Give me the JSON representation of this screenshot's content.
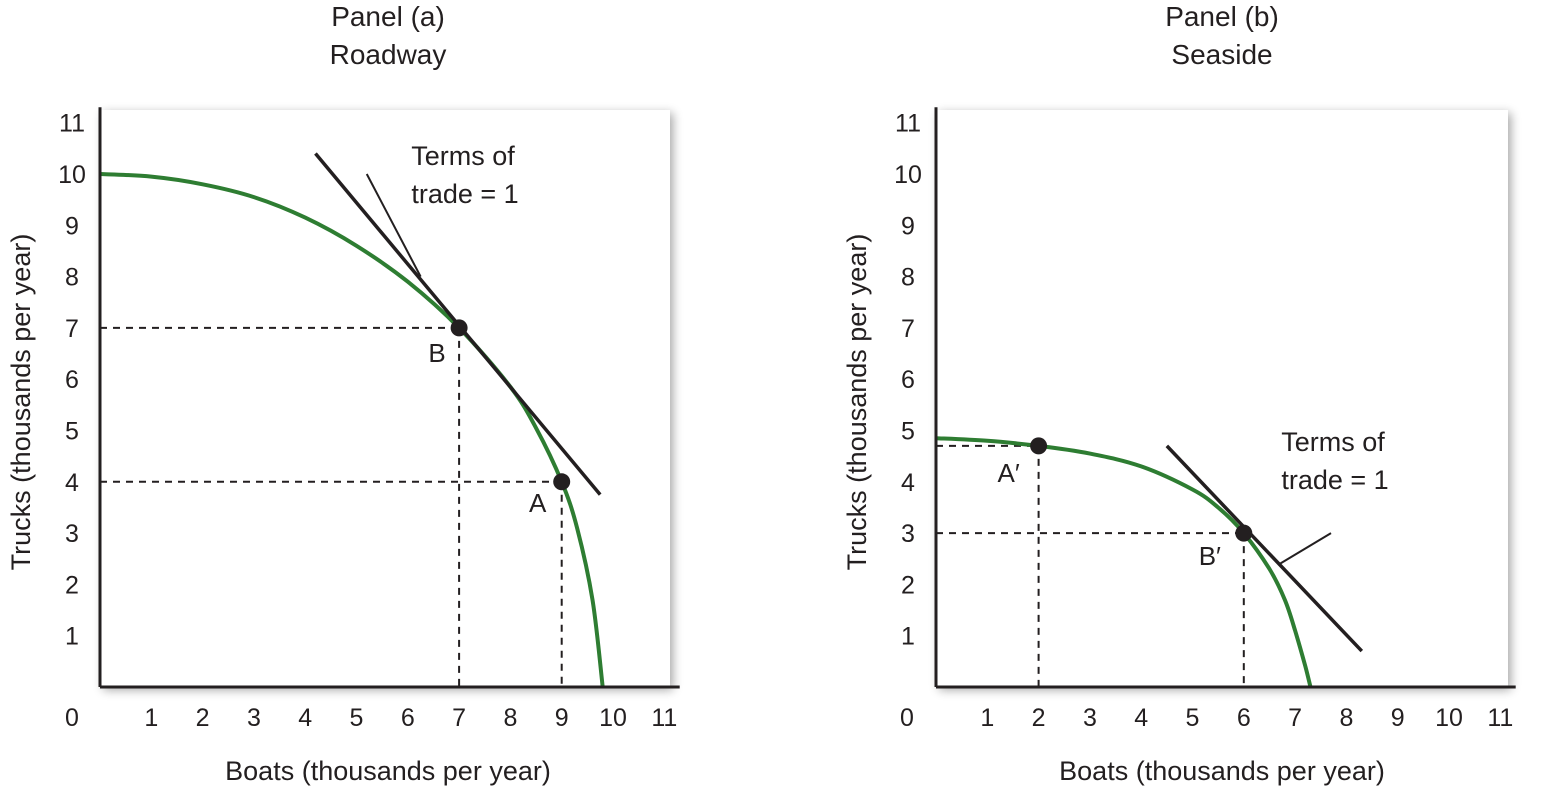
{
  "chart_data": [
    {
      "type": "line",
      "title_line1": "Panel (a)",
      "title_line2": "Roadway",
      "xlabel": "Boats (thousands per year)",
      "ylabel": "Trucks (thousands per year)",
      "origin_label": "0",
      "xticks": [
        "1",
        "2",
        "3",
        "4",
        "5",
        "6",
        "7",
        "8",
        "9",
        "10",
        "11"
      ],
      "yticks": [
        "1",
        "2",
        "3",
        "4",
        "5",
        "6",
        "7",
        "8",
        "9",
        "10",
        "11"
      ],
      "xlim": [
        0,
        11.3
      ],
      "ylim": [
        0,
        11.3
      ],
      "curve": {
        "name": "production possibilities curve",
        "color": "#2e7d32",
        "x": [
          0,
          1,
          2,
          3,
          4,
          5,
          6,
          7,
          8,
          8.5,
          9,
          9.3,
          9.6,
          9.8
        ],
        "y": [
          10,
          9.95,
          9.8,
          9.55,
          9.15,
          8.6,
          7.9,
          7,
          5.85,
          5.05,
          4,
          3.1,
          1.7,
          0
        ]
      },
      "points": [
        {
          "label": "B",
          "x": 7,
          "y": 7
        },
        {
          "label": "A",
          "x": 9,
          "y": 4
        }
      ],
      "trade_line": {
        "label_line1": "Terms of",
        "label_line2": "trade = 1",
        "x": [
          4.2,
          9.75
        ],
        "y": [
          10.4,
          3.75
        ],
        "pointer_from": [
          5.2,
          10.0
        ],
        "pointer_to": [
          6.25,
          8.0
        ]
      }
    },
    {
      "type": "line",
      "title_line1": "Panel (b)",
      "title_line2": "Seaside",
      "xlabel": "Boats (thousands per year)",
      "ylabel": "Trucks (thousands per year)",
      "origin_label": "0",
      "xticks": [
        "1",
        "2",
        "3",
        "4",
        "5",
        "6",
        "7",
        "8",
        "9",
        "10",
        "11"
      ],
      "yticks": [
        "1",
        "2",
        "3",
        "4",
        "5",
        "6",
        "7",
        "8",
        "9",
        "10",
        "11"
      ],
      "xlim": [
        0,
        11.3
      ],
      "ylim": [
        0,
        11.3
      ],
      "curve": {
        "name": "production possibilities curve",
        "color": "#2e7d32",
        "x": [
          0,
          1,
          2,
          3,
          4,
          5,
          5.5,
          6,
          6.5,
          6.8,
          7,
          7.2,
          7.3
        ],
        "y": [
          4.85,
          4.8,
          4.7,
          4.55,
          4.3,
          3.85,
          3.5,
          3,
          2.3,
          1.7,
          1.1,
          0.4,
          0
        ]
      },
      "points": [
        {
          "label": "A′",
          "x": 2,
          "y": 4.7
        },
        {
          "label": "B′",
          "x": 6,
          "y": 3
        }
      ],
      "trade_line": {
        "label_line1": "Terms of",
        "label_line2": "trade = 1",
        "x": [
          4.5,
          8.3
        ],
        "y": [
          4.7,
          0.7
        ],
        "pointer_from": [
          7.7,
          3.0
        ],
        "pointer_to": [
          6.7,
          2.4
        ]
      }
    }
  ]
}
